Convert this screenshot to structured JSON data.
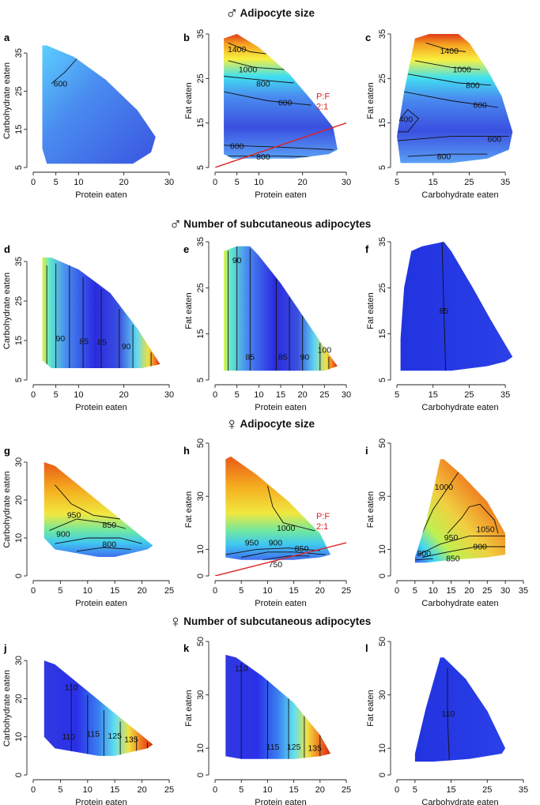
{
  "section_titles": [
    {
      "symbol": "♂",
      "text": "Adipocyte size"
    },
    {
      "symbol": "♂",
      "text": "Number of subcutaneous adipocytes"
    },
    {
      "symbol": "♀",
      "text": "Adipocyte size"
    },
    {
      "symbol": "♀",
      "text": "Number of subcutaneous adipocytes"
    }
  ],
  "colors": {
    "red_line": "#e02020",
    "axis": "#222222",
    "contour": "#111111"
  },
  "chart_data": [
    {
      "id": "a",
      "type": "heatmap",
      "xlabel": "Protein eaten",
      "ylabel": "Carbohydrate eaten",
      "xlim": [
        0,
        30
      ],
      "ylim": [
        5,
        40
      ],
      "xticks": [
        0,
        5,
        10,
        20,
        30
      ],
      "yticks": [
        5,
        15,
        25,
        35
      ],
      "region": [
        [
          2,
          37
        ],
        [
          3,
          37
        ],
        [
          9,
          34
        ],
        [
          16,
          28
        ],
        [
          23,
          20
        ],
        [
          27,
          13
        ],
        [
          26,
          9
        ],
        [
          22,
          6
        ],
        [
          17,
          6
        ],
        [
          10,
          6
        ],
        [
          3,
          6
        ],
        [
          2,
          10
        ]
      ],
      "colormap": "blue",
      "contour_labels": [
        {
          "text": "600",
          "x": 6,
          "y": 27
        }
      ]
    },
    {
      "id": "b",
      "type": "heatmap",
      "xlabel": "Protein eaten",
      "ylabel": "Fat eaten",
      "xlim": [
        0,
        30
      ],
      "ylim": [
        5,
        35
      ],
      "xticks": [
        0,
        5,
        10,
        20,
        30
      ],
      "yticks": [
        5,
        15,
        25,
        35
      ],
      "region": [
        [
          2,
          34
        ],
        [
          5,
          35
        ],
        [
          10,
          32
        ],
        [
          17,
          26
        ],
        [
          23,
          19
        ],
        [
          27,
          14
        ],
        [
          28,
          9
        ],
        [
          26,
          8
        ],
        [
          18,
          7
        ],
        [
          10,
          7
        ],
        [
          4,
          7
        ],
        [
          2,
          8
        ]
      ],
      "colormap": "size_m",
      "contour_labels": [
        {
          "text": "1400",
          "x": 5,
          "y": 31.5
        },
        {
          "text": "1000",
          "x": 7.5,
          "y": 27
        },
        {
          "text": "800",
          "x": 11,
          "y": 23.8
        },
        {
          "text": "600",
          "x": 16,
          "y": 19.6
        },
        {
          "text": "600",
          "x": 5,
          "y": 9.8
        },
        {
          "text": "800",
          "x": 11,
          "y": 7.4
        }
      ],
      "pf_line": {
        "label": [
          "P:F",
          "2:1"
        ],
        "from": [
          0,
          5
        ],
        "to": [
          30,
          15
        ]
      }
    },
    {
      "id": "c",
      "type": "heatmap",
      "xlabel": "Carbohydrate eaten",
      "ylabel": "Fat eaten",
      "xlim": [
        5,
        40
      ],
      "ylim": [
        5,
        35
      ],
      "xticks": [
        5,
        15,
        25,
        35
      ],
      "yticks": [
        5,
        15,
        25,
        35
      ],
      "region": [
        [
          10,
          34
        ],
        [
          14,
          35
        ],
        [
          22,
          35
        ],
        [
          25,
          33
        ],
        [
          30,
          27
        ],
        [
          34,
          21
        ],
        [
          37,
          13
        ],
        [
          36,
          9
        ],
        [
          30,
          7
        ],
        [
          20,
          6
        ],
        [
          12,
          6
        ],
        [
          6,
          6
        ],
        [
          5,
          12
        ],
        [
          7,
          22
        ]
      ],
      "colormap": "size_m",
      "contour_labels": [
        {
          "text": "1400",
          "x": 19.5,
          "y": 31.2
        },
        {
          "text": "1000",
          "x": 23,
          "y": 27
        },
        {
          "text": "800",
          "x": 26,
          "y": 23.5
        },
        {
          "text": "600",
          "x": 28,
          "y": 19
        },
        {
          "text": "400",
          "x": 7.5,
          "y": 15.8
        },
        {
          "text": "600",
          "x": 32,
          "y": 11.4
        },
        {
          "text": "800",
          "x": 18,
          "y": 7.5
        }
      ]
    },
    {
      "id": "d",
      "type": "heatmap",
      "xlabel": "Protein eaten",
      "ylabel": "Carbohydrate eaten",
      "xlim": [
        0,
        30
      ],
      "ylim": [
        5,
        40
      ],
      "xticks": [
        0,
        5,
        10,
        20,
        30
      ],
      "yticks": [
        5,
        15,
        25,
        35
      ],
      "region": [
        [
          2,
          36
        ],
        [
          4,
          36
        ],
        [
          10,
          33
        ],
        [
          17,
          27
        ],
        [
          23,
          18
        ],
        [
          28,
          9
        ],
        [
          24,
          8
        ],
        [
          17,
          8
        ],
        [
          10,
          8
        ],
        [
          4,
          8
        ],
        [
          2,
          10
        ]
      ],
      "colormap": "count_m",
      "contour_labels": [
        {
          "text": "90",
          "x": 6,
          "y": 15.5
        },
        {
          "text": "85",
          "x": 11.2,
          "y": 14.8
        },
        {
          "text": "85",
          "x": 15.2,
          "y": 14.6
        },
        {
          "text": "90",
          "x": 20.5,
          "y": 13.5
        }
      ]
    },
    {
      "id": "e",
      "type": "heatmap",
      "xlabel": "Protein eaten",
      "ylabel": "Fat eaten",
      "xlim": [
        0,
        30
      ],
      "ylim": [
        5,
        35
      ],
      "xticks": [
        0,
        5,
        10,
        15,
        20,
        25,
        30
      ],
      "yticks": [
        5,
        15,
        25,
        35
      ],
      "region": [
        [
          2,
          33
        ],
        [
          5,
          34
        ],
        [
          8,
          34
        ],
        [
          10,
          32
        ],
        [
          15,
          26
        ],
        [
          20,
          19
        ],
        [
          25,
          12
        ],
        [
          28,
          8
        ],
        [
          25,
          7
        ],
        [
          15,
          7
        ],
        [
          5,
          7
        ],
        [
          2,
          7
        ]
      ],
      "colormap": "count_m",
      "contour_labels": [
        {
          "text": "90",
          "x": 5,
          "y": 31
        },
        {
          "text": "85",
          "x": 8,
          "y": 10
        },
        {
          "text": "85",
          "x": 15.5,
          "y": 10
        },
        {
          "text": "90",
          "x": 20.5,
          "y": 10
        },
        {
          "text": "100",
          "x": 25,
          "y": 11.5
        }
      ]
    },
    {
      "id": "f",
      "type": "heatmap",
      "xlabel": "Carbohydrate eaten",
      "ylabel": "Fat eaten",
      "xlim": [
        5,
        40
      ],
      "ylim": [
        5,
        35
      ],
      "xticks": [
        5,
        15,
        25,
        35
      ],
      "yticks": [
        5,
        15,
        25,
        35
      ],
      "region": [
        [
          9,
          33
        ],
        [
          12,
          34
        ],
        [
          18,
          35
        ],
        [
          20,
          33
        ],
        [
          26,
          25
        ],
        [
          31,
          18
        ],
        [
          37,
          10
        ],
        [
          35,
          9
        ],
        [
          30,
          8
        ],
        [
          20,
          7
        ],
        [
          12,
          7
        ],
        [
          6,
          7
        ],
        [
          6,
          14
        ],
        [
          7,
          25
        ]
      ],
      "colormap": "flat_blue",
      "contour_labels": [
        {
          "text": "85",
          "x": 18,
          "y": 20
        }
      ]
    },
    {
      "id": "g",
      "type": "heatmap",
      "xlabel": "Protein eaten",
      "ylabel": "Carbohydrate eaten",
      "xlim": [
        0,
        25
      ],
      "ylim": [
        0,
        35
      ],
      "xticks": [
        0,
        5,
        10,
        15,
        20,
        25
      ],
      "yticks": [
        0,
        10,
        20,
        30
      ],
      "region": [
        [
          2,
          30
        ],
        [
          4,
          29
        ],
        [
          10,
          22
        ],
        [
          16,
          15
        ],
        [
          22,
          8
        ],
        [
          21,
          7
        ],
        [
          18,
          6
        ],
        [
          15,
          5
        ],
        [
          12,
          5
        ],
        [
          8,
          6
        ],
        [
          4,
          7
        ],
        [
          2,
          10
        ]
      ],
      "colormap": "size_f",
      "contour_labels": [
        {
          "text": "950",
          "x": 7.5,
          "y": 16
        },
        {
          "text": "850",
          "x": 14,
          "y": 13.4
        },
        {
          "text": "900",
          "x": 5.5,
          "y": 11
        },
        {
          "text": "800",
          "x": 14,
          "y": 8.3
        }
      ]
    },
    {
      "id": "h",
      "type": "heatmap",
      "xlabel": "Protein eaten",
      "ylabel": "Fat eaten",
      "xlim": [
        0,
        25
      ],
      "ylim": [
        0,
        50
      ],
      "xticks": [
        0,
        5,
        10,
        15,
        20,
        25
      ],
      "yticks": [
        0,
        10,
        30,
        50
      ],
      "region": [
        [
          2,
          44
        ],
        [
          3,
          45
        ],
        [
          8,
          38
        ],
        [
          14,
          28
        ],
        [
          20,
          16
        ],
        [
          22,
          8
        ],
        [
          20,
          7
        ],
        [
          15,
          6
        ],
        [
          10,
          6
        ],
        [
          5,
          6
        ],
        [
          2,
          7
        ]
      ],
      "colormap": "size_f",
      "contour_labels": [
        {
          "text": "1000",
          "x": 13.5,
          "y": 18
        },
        {
          "text": "950",
          "x": 7,
          "y": 12.5
        },
        {
          "text": "900",
          "x": 11.5,
          "y": 12.5
        },
        {
          "text": "850",
          "x": 16.5,
          "y": 10.3
        },
        {
          "text": "750",
          "x": 11.5,
          "y": 4.3
        }
      ],
      "pf_line": {
        "label": [
          "P:F",
          "2:1"
        ],
        "from": [
          0,
          0
        ],
        "to": [
          25,
          12.5
        ]
      }
    },
    {
      "id": "i",
      "type": "heatmap",
      "xlabel": "Carbohydrate eaten",
      "ylabel": "Fat eaten",
      "xlim": [
        0,
        35
      ],
      "ylim": [
        0,
        50
      ],
      "xticks": [
        0,
        5,
        10,
        15,
        20,
        25,
        30,
        35
      ],
      "yticks": [
        0,
        10,
        30,
        50
      ],
      "region": [
        [
          12,
          44
        ],
        [
          13,
          44
        ],
        [
          18,
          38
        ],
        [
          25,
          28
        ],
        [
          30,
          16
        ],
        [
          30,
          8
        ],
        [
          25,
          7
        ],
        [
          15,
          6
        ],
        [
          8,
          5
        ],
        [
          5,
          5
        ],
        [
          5,
          7
        ],
        [
          8,
          20
        ]
      ],
      "colormap": "size_fi",
      "contour_labels": [
        {
          "text": "1000",
          "x": 13,
          "y": 33.5
        },
        {
          "text": "1050",
          "x": 24.5,
          "y": 17.5
        },
        {
          "text": "950",
          "x": 15,
          "y": 14.5
        },
        {
          "text": "900",
          "x": 23,
          "y": 11
        },
        {
          "text": "800",
          "x": 7.5,
          "y": 8.5
        },
        {
          "text": "850",
          "x": 15.5,
          "y": 6.5
        }
      ]
    },
    {
      "id": "j",
      "type": "heatmap",
      "xlabel": "Protein eaten",
      "ylabel": "Carbohydrate eaten",
      "xlim": [
        0,
        25
      ],
      "ylim": [
        0,
        35
      ],
      "xticks": [
        0,
        5,
        10,
        15,
        20,
        25
      ],
      "yticks": [
        0,
        10,
        20,
        30
      ],
      "region": [
        [
          2,
          30
        ],
        [
          4,
          29
        ],
        [
          10,
          22
        ],
        [
          16,
          15
        ],
        [
          22,
          8
        ],
        [
          21,
          7
        ],
        [
          18,
          6
        ],
        [
          15,
          5
        ],
        [
          12,
          5
        ],
        [
          8,
          6
        ],
        [
          4,
          7
        ],
        [
          2,
          10
        ]
      ],
      "colormap": "count_f",
      "contour_labels": [
        {
          "text": "110",
          "x": 7,
          "y": 23
        },
        {
          "text": "110",
          "x": 6.5,
          "y": 10
        },
        {
          "text": "115",
          "x": 11,
          "y": 10.8
        },
        {
          "text": "125",
          "x": 15,
          "y": 10.3
        },
        {
          "text": "135",
          "x": 18,
          "y": 9.3
        }
      ]
    },
    {
      "id": "k",
      "type": "heatmap",
      "xlabel": "Protein eaten",
      "ylabel": "Fat eaten",
      "xlim": [
        0,
        25
      ],
      "ylim": [
        0,
        50
      ],
      "xticks": [
        0,
        5,
        10,
        15,
        20,
        25
      ],
      "yticks": [
        0,
        10,
        30,
        50
      ],
      "region": [
        [
          2,
          45
        ],
        [
          4,
          44
        ],
        [
          9,
          37
        ],
        [
          15,
          27
        ],
        [
          20,
          15
        ],
        [
          22,
          8
        ],
        [
          20,
          7
        ],
        [
          15,
          6
        ],
        [
          10,
          6
        ],
        [
          5,
          6
        ],
        [
          2,
          7
        ]
      ],
      "colormap": "count_f",
      "contour_labels": [
        {
          "text": "110",
          "x": 5,
          "y": 40
        },
        {
          "text": "115",
          "x": 11,
          "y": 10.5
        },
        {
          "text": "125",
          "x": 15,
          "y": 10.5
        },
        {
          "text": "135",
          "x": 19,
          "y": 10
        }
      ]
    },
    {
      "id": "l",
      "type": "heatmap",
      "xlabel": "Carbohydrate eaten",
      "ylabel": "Fat eaten",
      "xlim": [
        0,
        35
      ],
      "ylim": [
        0,
        50
      ],
      "xticks": [
        0,
        5,
        15,
        25,
        35
      ],
      "yticks": [
        0,
        10,
        30,
        50
      ],
      "region": [
        [
          12,
          44
        ],
        [
          13,
          44
        ],
        [
          19,
          36
        ],
        [
          25,
          24
        ],
        [
          30,
          10
        ],
        [
          29,
          8
        ],
        [
          20,
          6
        ],
        [
          10,
          5
        ],
        [
          5,
          5
        ],
        [
          5,
          8
        ],
        [
          8,
          25
        ]
      ],
      "colormap": "flat_blue",
      "contour_labels": [
        {
          "text": "110",
          "x": 14.2,
          "y": 23
        }
      ]
    }
  ]
}
